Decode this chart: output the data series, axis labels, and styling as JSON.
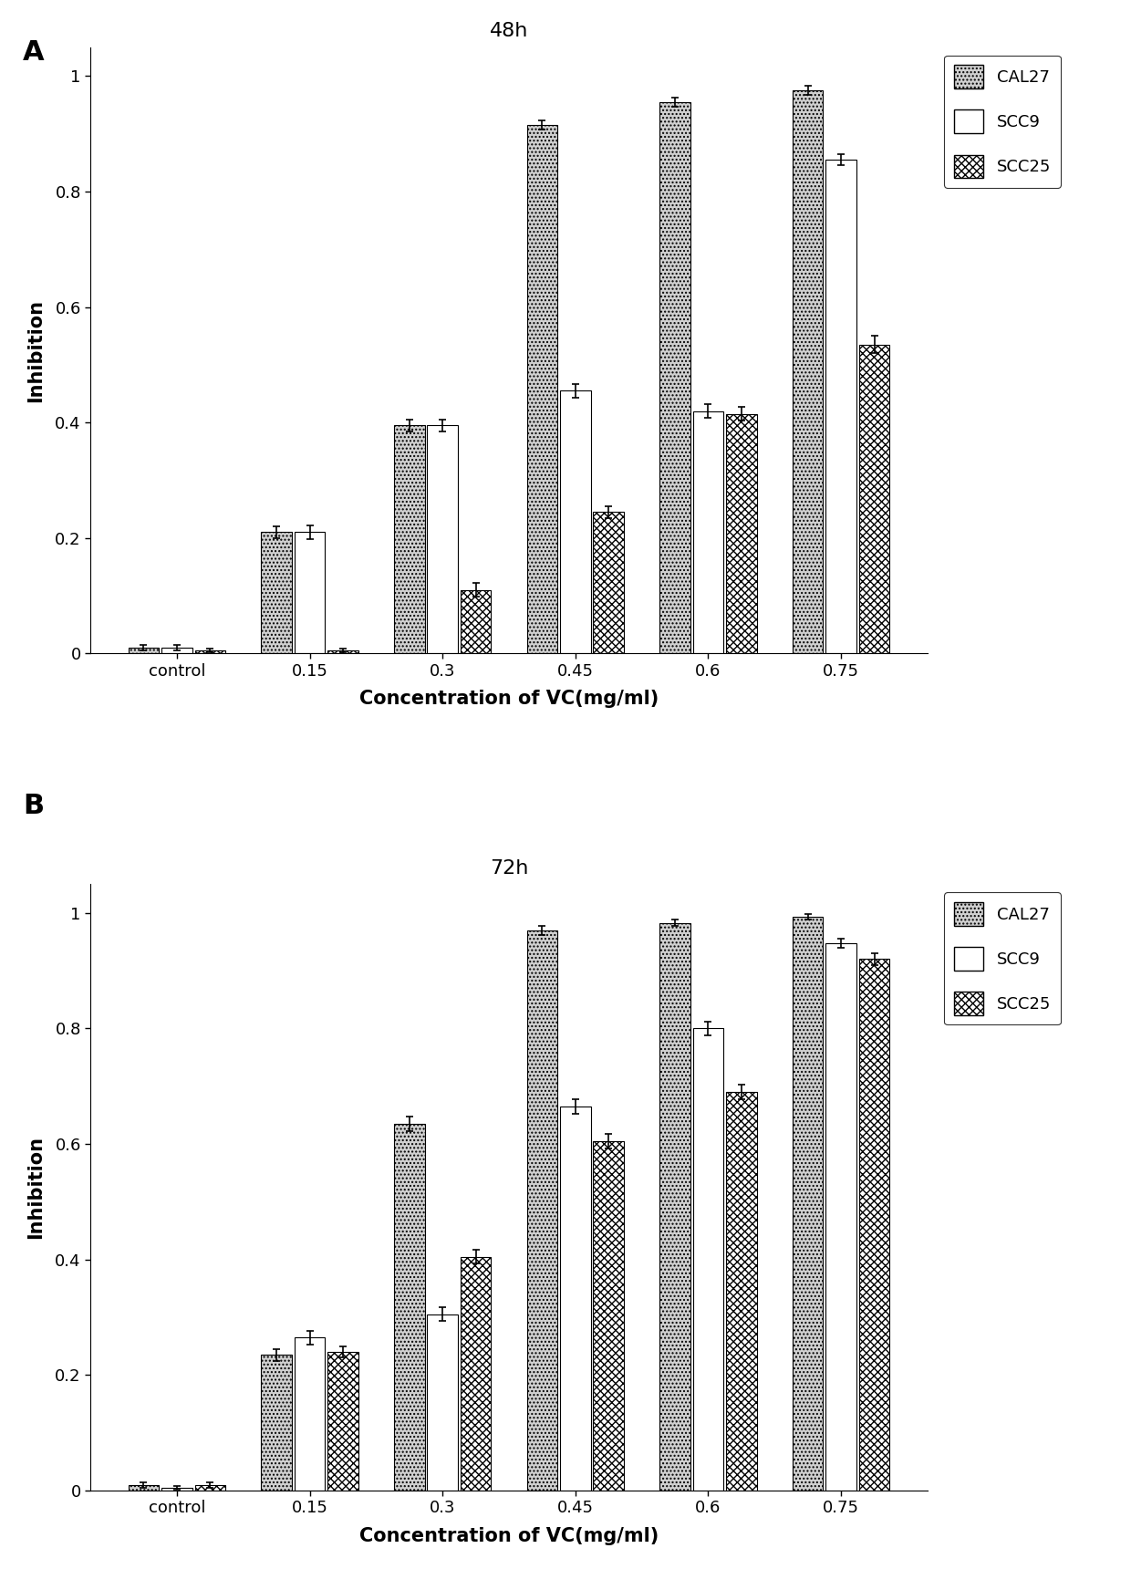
{
  "panel_A": {
    "title": "48h",
    "categories": [
      "control",
      "0.15",
      "0.3",
      "0.45",
      "0.6",
      "0.75"
    ],
    "CAL27": [
      0.01,
      0.21,
      0.395,
      0.915,
      0.955,
      0.975
    ],
    "CAL27_err": [
      0.005,
      0.01,
      0.01,
      0.008,
      0.008,
      0.008
    ],
    "SCC9": [
      0.01,
      0.21,
      0.395,
      0.455,
      0.42,
      0.855
    ],
    "SCC9_err": [
      0.005,
      0.012,
      0.01,
      0.012,
      0.012,
      0.01
    ],
    "SCC25": [
      0.005,
      0.005,
      0.11,
      0.245,
      0.415,
      0.535
    ],
    "SCC25_err": [
      0.003,
      0.003,
      0.012,
      0.01,
      0.012,
      0.015
    ]
  },
  "panel_B": {
    "title": "72h",
    "categories": [
      "control",
      "0.15",
      "0.3",
      "0.45",
      "0.6",
      "0.75"
    ],
    "CAL27": [
      0.01,
      0.235,
      0.635,
      0.97,
      0.983,
      0.993
    ],
    "CAL27_err": [
      0.005,
      0.01,
      0.012,
      0.008,
      0.006,
      0.005
    ],
    "SCC9": [
      0.005,
      0.265,
      0.305,
      0.665,
      0.8,
      0.948
    ],
    "SCC9_err": [
      0.003,
      0.012,
      0.012,
      0.012,
      0.012,
      0.008
    ],
    "SCC25": [
      0.01,
      0.24,
      0.405,
      0.605,
      0.69,
      0.92
    ],
    "SCC25_err": [
      0.005,
      0.01,
      0.012,
      0.012,
      0.012,
      0.01
    ]
  },
  "xlabel": "Concentration of VC(mg/ml)",
  "ylabel": "Inhibition",
  "legend_labels": [
    "CAL27",
    "SCC9",
    "SCC25"
  ],
  "bar_width": 0.25,
  "ylim": [
    0,
    1.05
  ]
}
